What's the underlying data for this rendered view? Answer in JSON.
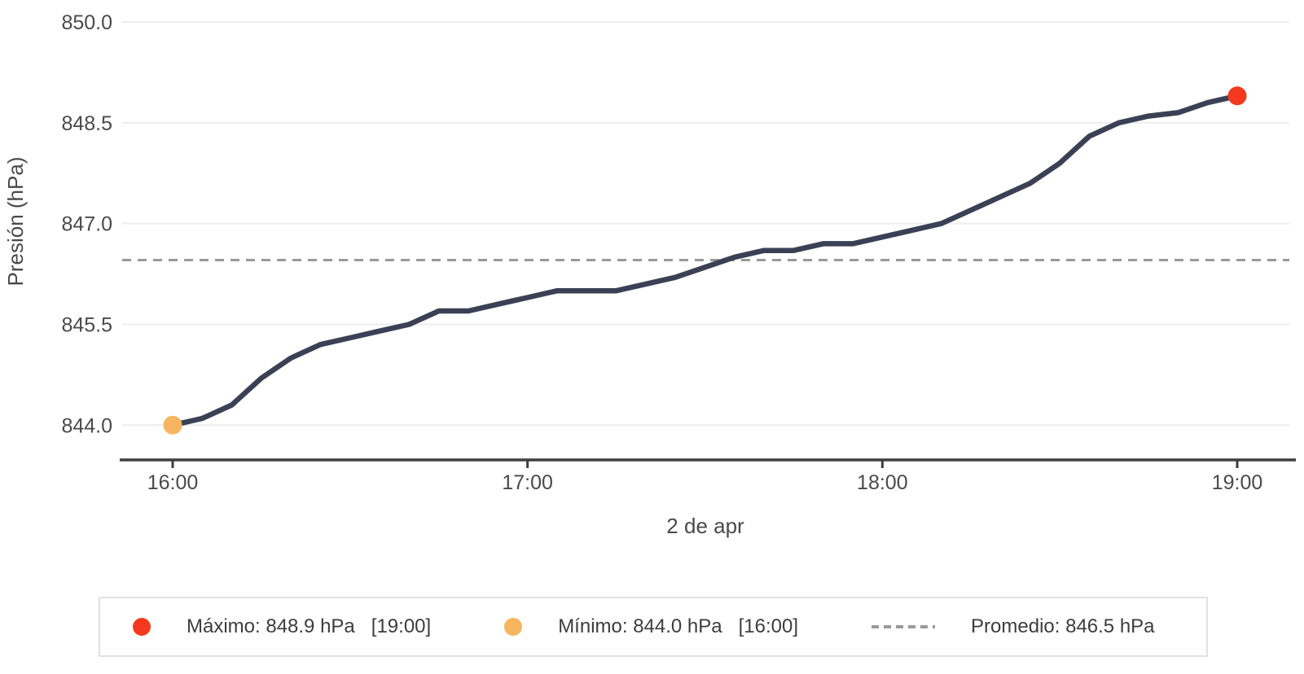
{
  "chart_data": {
    "type": "line",
    "xlabel": "2 de apr",
    "ylabel": "Presión (hPa)",
    "grid": "horizontal",
    "legend_position": "bottom",
    "x_tick_labels": [
      "16:00",
      "17:00",
      "18:00",
      "19:00"
    ],
    "x_tick_indices": [
      0,
      12,
      24,
      36
    ],
    "y_tick_labels": [
      "850.0",
      "848.5",
      "847.0",
      "845.5",
      "844.0"
    ],
    "y_tick_values": [
      850.0,
      848.5,
      847.0,
      845.5,
      844.0
    ],
    "ylim": [
      843.5,
      850.3
    ],
    "series": [
      {
        "name": "Presión",
        "color": "#3b4154",
        "x": [
          "16:00",
          "16:05",
          "16:10",
          "16:15",
          "16:20",
          "16:25",
          "16:30",
          "16:35",
          "16:40",
          "16:45",
          "16:50",
          "16:55",
          "17:00",
          "17:05",
          "17:10",
          "17:15",
          "17:20",
          "17:25",
          "17:30",
          "17:35",
          "17:40",
          "17:45",
          "17:50",
          "17:55",
          "18:00",
          "18:05",
          "18:10",
          "18:15",
          "18:20",
          "18:25",
          "18:30",
          "18:35",
          "18:40",
          "18:45",
          "18:50",
          "18:55",
          "19:00"
        ],
        "y": [
          844.0,
          844.1,
          844.3,
          844.7,
          845.0,
          845.2,
          845.3,
          845.4,
          845.5,
          845.7,
          845.7,
          845.8,
          845.9,
          846.0,
          846.0,
          846.0,
          846.1,
          846.2,
          846.35,
          846.5,
          846.6,
          846.6,
          846.7,
          846.7,
          846.8,
          846.9,
          847.0,
          847.2,
          847.4,
          847.6,
          847.9,
          848.3,
          848.5,
          848.6,
          848.65,
          848.8,
          848.9
        ]
      }
    ],
    "max_point": {
      "label": "Máximo",
      "value": 848.9,
      "unit": "hPa",
      "time": "19:00",
      "index": 36,
      "color": "#f5391e"
    },
    "min_point": {
      "label": "Mínimo",
      "value": 844.0,
      "unit": "hPa",
      "time": "16:00",
      "index": 0,
      "color": "#f8b55f"
    },
    "mean_line": {
      "label": "Promedio",
      "value": 846.5,
      "unit": "hPa",
      "color": "#999999",
      "style": "dashed"
    }
  },
  "legend": {
    "items": [
      {
        "marker": "dot",
        "color": "#f5391e",
        "label": "Máximo: 848.9 hPa",
        "time": "[19:00]"
      },
      {
        "marker": "dot",
        "color": "#f8b55f",
        "label": "Mínimo: 844.0 hPa",
        "time": "[16:00]"
      },
      {
        "marker": "dash",
        "color": "#9a9a9a",
        "label": "Promedio: 846.5 hPa",
        "time": ""
      }
    ]
  }
}
